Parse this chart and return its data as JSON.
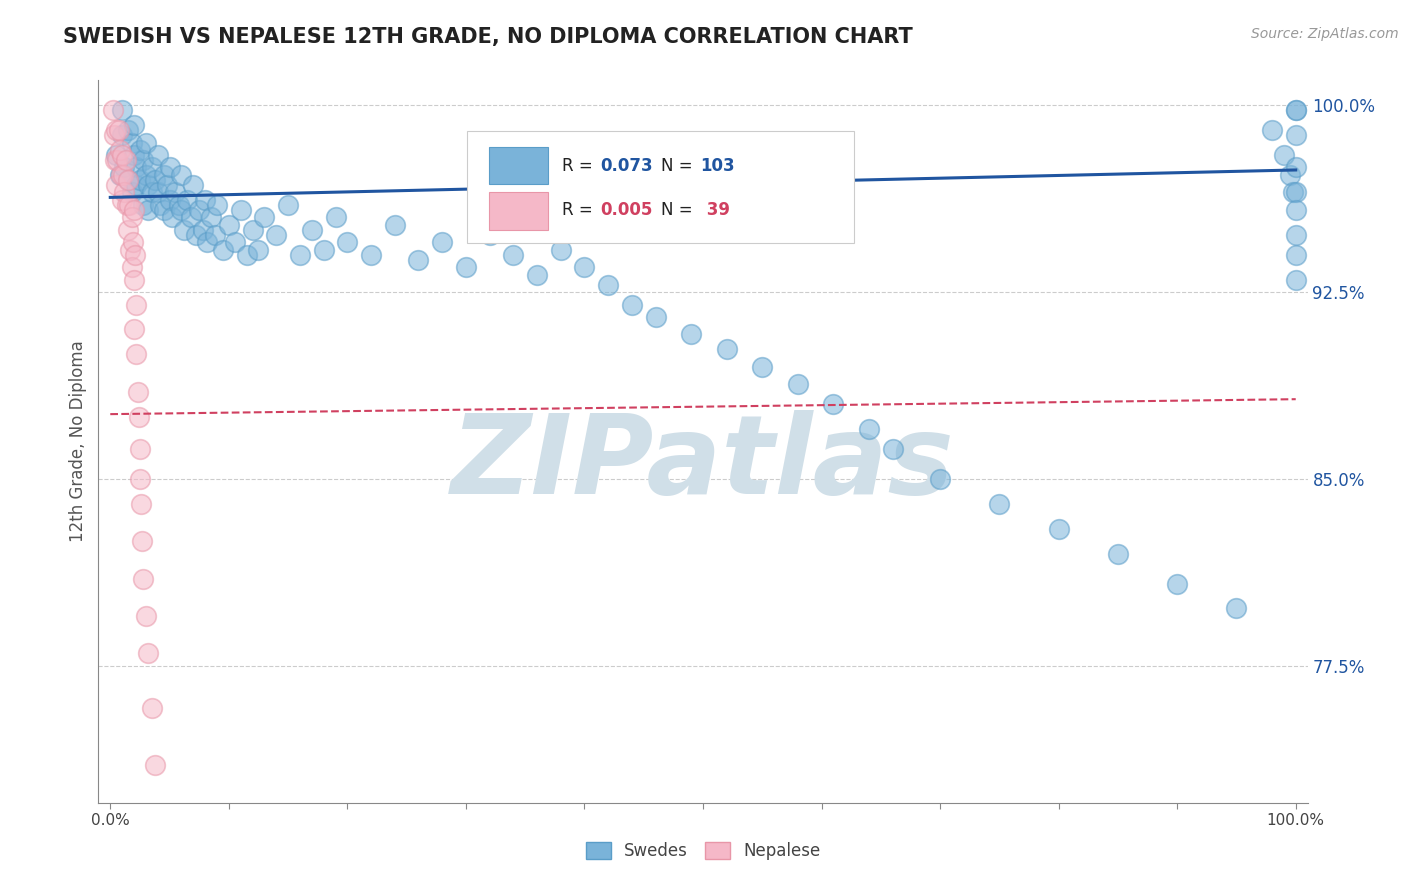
{
  "title": "SWEDISH VS NEPALESE 12TH GRADE, NO DIPLOMA CORRELATION CHART",
  "source": "Source: ZipAtlas.com",
  "ylabel": "12th Grade, No Diploma",
  "xlim": [
    -0.01,
    1.01
  ],
  "ylim": [
    0.72,
    1.01
  ],
  "yticks": [
    0.775,
    0.85,
    0.925,
    1.0
  ],
  "ytick_labels": [
    "77.5%",
    "85.0%",
    "92.5%",
    "100.0%"
  ],
  "xticks": [
    0.0,
    0.1,
    0.2,
    0.3,
    0.4,
    0.5,
    0.6,
    0.7,
    0.8,
    0.9,
    1.0
  ],
  "xtick_labels": [
    "0.0%",
    "",
    "",
    "",
    "",
    "",
    "",
    "",
    "",
    "",
    "100.0%"
  ],
  "legend_swedes": "Swedes",
  "legend_nepalese": "Nepalese",
  "blue_color": "#7ab3d9",
  "blue_edge_color": "#5a9dc8",
  "blue_line_color": "#2055a0",
  "pink_color": "#f5b8c8",
  "pink_edge_color": "#e896a8",
  "pink_line_color": "#d04060",
  "watermark": "ZIPatlas",
  "watermark_color": "#d0dfe8",
  "background_color": "#ffffff",
  "grid_color": "#cccccc",
  "title_color": "#222222",
  "axis_label_color": "#555555",
  "blue_trend_x": [
    0.0,
    1.0
  ],
  "blue_trend_y": [
    0.963,
    0.974
  ],
  "pink_trend_x": [
    0.0,
    1.0
  ],
  "pink_trend_y": [
    0.876,
    0.882
  ],
  "blue_scatter_x": [
    0.005,
    0.008,
    0.01,
    0.01,
    0.012,
    0.015,
    0.015,
    0.018,
    0.018,
    0.02,
    0.02,
    0.022,
    0.022,
    0.025,
    0.025,
    0.028,
    0.028,
    0.03,
    0.03,
    0.032,
    0.032,
    0.035,
    0.035,
    0.038,
    0.04,
    0.04,
    0.042,
    0.045,
    0.045,
    0.048,
    0.05,
    0.05,
    0.052,
    0.055,
    0.058,
    0.06,
    0.06,
    0.062,
    0.065,
    0.068,
    0.07,
    0.072,
    0.075,
    0.078,
    0.08,
    0.082,
    0.085,
    0.088,
    0.09,
    0.095,
    0.1,
    0.105,
    0.11,
    0.115,
    0.12,
    0.125,
    0.13,
    0.14,
    0.15,
    0.16,
    0.17,
    0.18,
    0.19,
    0.2,
    0.22,
    0.24,
    0.26,
    0.28,
    0.3,
    0.32,
    0.34,
    0.36,
    0.38,
    0.4,
    0.42,
    0.44,
    0.46,
    0.49,
    0.52,
    0.55,
    0.58,
    0.61,
    0.64,
    0.66,
    0.7,
    0.75,
    0.8,
    0.85,
    0.9,
    0.95,
    0.98,
    0.99,
    0.995,
    0.998,
    1.0,
    1.0,
    1.0,
    1.0,
    1.0,
    1.0,
    1.0,
    1.0,
    1.0
  ],
  "blue_scatter_y": [
    0.98,
    0.972,
    0.998,
    0.988,
    0.975,
    0.99,
    0.97,
    0.985,
    0.965,
    0.992,
    0.98,
    0.975,
    0.968,
    0.982,
    0.97,
    0.978,
    0.96,
    0.985,
    0.972,
    0.968,
    0.958,
    0.975,
    0.965,
    0.97,
    0.98,
    0.965,
    0.96,
    0.972,
    0.958,
    0.968,
    0.975,
    0.962,
    0.955,
    0.965,
    0.96,
    0.972,
    0.958,
    0.95,
    0.962,
    0.955,
    0.968,
    0.948,
    0.958,
    0.95,
    0.962,
    0.945,
    0.955,
    0.948,
    0.96,
    0.942,
    0.952,
    0.945,
    0.958,
    0.94,
    0.95,
    0.942,
    0.955,
    0.948,
    0.96,
    0.94,
    0.95,
    0.942,
    0.955,
    0.945,
    0.94,
    0.952,
    0.938,
    0.945,
    0.935,
    0.948,
    0.94,
    0.932,
    0.942,
    0.935,
    0.928,
    0.92,
    0.915,
    0.908,
    0.902,
    0.895,
    0.888,
    0.88,
    0.87,
    0.862,
    0.85,
    0.84,
    0.83,
    0.82,
    0.808,
    0.798,
    0.99,
    0.98,
    0.972,
    0.965,
    0.998,
    0.988,
    0.975,
    0.965,
    0.958,
    0.948,
    0.94,
    0.93,
    0.998
  ],
  "pink_scatter_x": [
    0.002,
    0.003,
    0.004,
    0.005,
    0.005,
    0.006,
    0.007,
    0.008,
    0.009,
    0.01,
    0.01,
    0.011,
    0.012,
    0.013,
    0.014,
    0.015,
    0.015,
    0.016,
    0.017,
    0.018,
    0.018,
    0.019,
    0.02,
    0.02,
    0.02,
    0.021,
    0.022,
    0.022,
    0.023,
    0.024,
    0.025,
    0.025,
    0.026,
    0.027,
    0.028,
    0.03,
    0.032,
    0.035,
    0.038
  ],
  "pink_scatter_y": [
    0.998,
    0.988,
    0.978,
    0.968,
    0.99,
    0.978,
    0.99,
    0.982,
    0.972,
    0.98,
    0.962,
    0.972,
    0.965,
    0.978,
    0.96,
    0.97,
    0.95,
    0.96,
    0.942,
    0.955,
    0.935,
    0.945,
    0.958,
    0.93,
    0.91,
    0.94,
    0.92,
    0.9,
    0.885,
    0.875,
    0.862,
    0.85,
    0.84,
    0.825,
    0.81,
    0.795,
    0.78,
    0.758,
    0.735
  ]
}
